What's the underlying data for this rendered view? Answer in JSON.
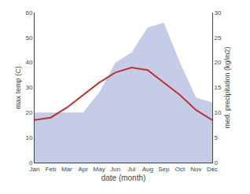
{
  "chart_data": {
    "type": "line",
    "xlabel": "date (month)",
    "ylabel": "max temp (C)",
    "y2label": "med. precipitation (kg/m2)",
    "categories": [
      "Jan",
      "Feb",
      "Mar",
      "Apr",
      "May",
      "Jun",
      "Jul",
      "Aug",
      "Sep",
      "Oct",
      "Nov",
      "Dec"
    ],
    "series": [
      {
        "type": "area",
        "axis": "y2",
        "color": "#c5cce8",
        "values": [
          10,
          10,
          10,
          10,
          14,
          20,
          22,
          27,
          28,
          20,
          13,
          12
        ]
      },
      {
        "type": "line",
        "color": "#c03030",
        "values": [
          17,
          18,
          22,
          27,
          32,
          36,
          38,
          37,
          32,
          27,
          21,
          17
        ]
      }
    ],
    "ylim": [
      0,
      60
    ],
    "yticks": [
      0,
      10,
      20,
      30,
      40,
      50,
      60
    ],
    "y2lim": [
      0,
      30
    ],
    "y2ticks": [
      0,
      5,
      10,
      15,
      20,
      25,
      30
    ],
    "grid": false
  }
}
